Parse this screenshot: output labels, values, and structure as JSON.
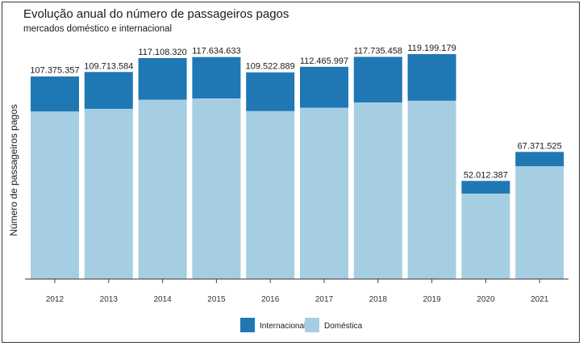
{
  "chart_data": {
    "type": "bar",
    "stacked": true,
    "title": "Evolução anual do número de passageiros pagos",
    "subtitle": "mercados doméstico e internacional",
    "xlabel": "",
    "ylabel": "Número de passageiros pagos",
    "categories": [
      "2012",
      "2013",
      "2014",
      "2015",
      "2016",
      "2017",
      "2018",
      "2019",
      "2020",
      "2021"
    ],
    "series": [
      {
        "name": "Doméstica",
        "color": "#a6cee3",
        "values": [
          88800000,
          90200000,
          95000000,
          95700000,
          89000000,
          90800000,
          93600000,
          94500000,
          45300000,
          59800000
        ]
      },
      {
        "name": "Internacional",
        "color": "#1f78b4",
        "values": [
          18575357,
          19513584,
          22108320,
          21934633,
          20522889,
          21665997,
          24135458,
          24699179,
          6712387,
          7571525
        ]
      }
    ],
    "totals": [
      107375357,
      109713584,
      117108320,
      117634633,
      109522889,
      112465997,
      117735458,
      119199179,
      52012387,
      67371525
    ],
    "total_labels": [
      "107.375.357",
      "109.713.584",
      "117.108.320",
      "117.634.633",
      "109.522.889",
      "112.465.997",
      "117.735.458",
      "119.199.179",
      "52.012.387",
      "67.371.525"
    ],
    "legend": [
      {
        "name": "Internacional",
        "color": "#1f78b4"
      },
      {
        "name": "Doméstica",
        "color": "#a6cee3"
      }
    ],
    "legend_position": "bottom",
    "ylim": [
      0,
      125000000
    ],
    "grid": false
  }
}
